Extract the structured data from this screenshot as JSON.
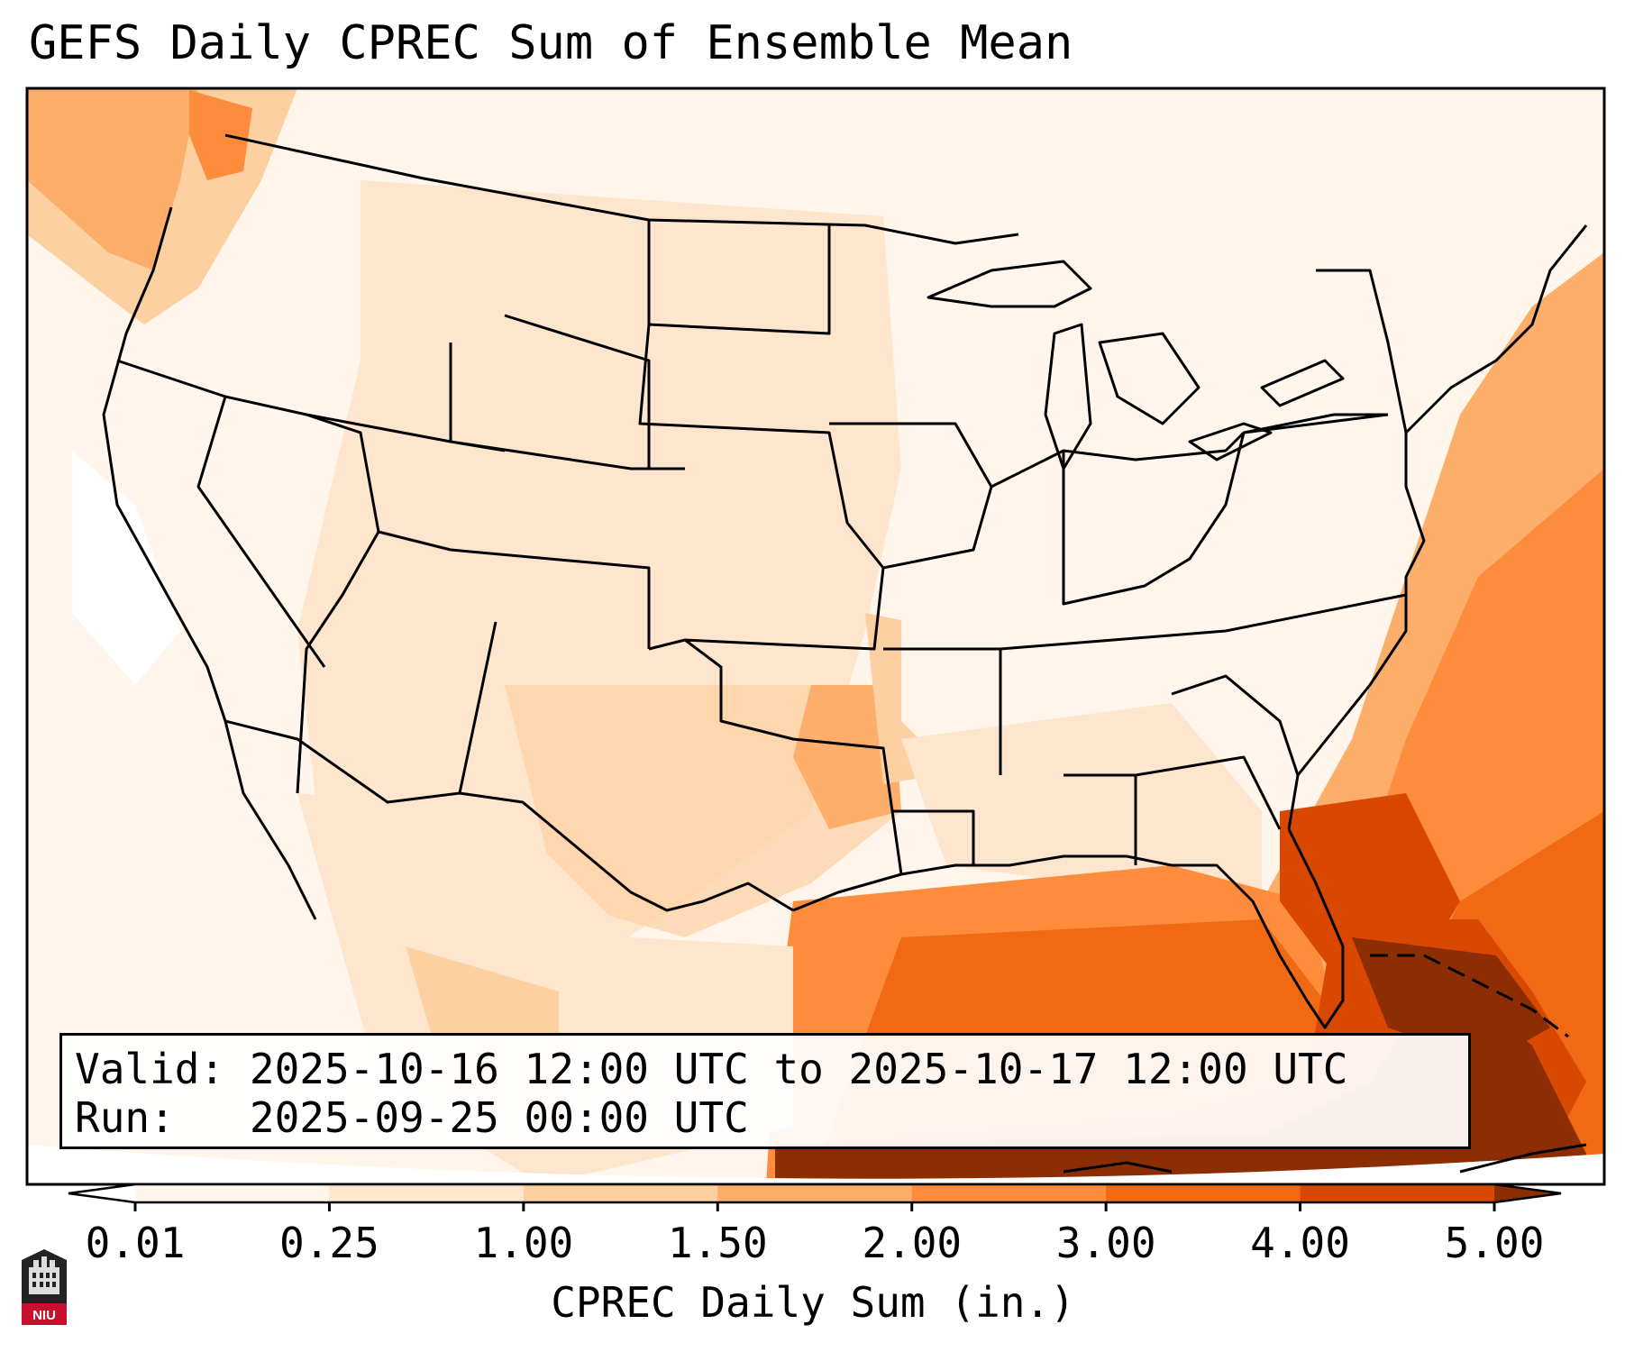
{
  "title": "GEFS Daily CPREC Sum of Ensemble Mean",
  "info": {
    "valid_label": "Valid:",
    "valid_value": "2025-10-16 12:00 UTC to 2025-10-17 12:00 UTC",
    "run_label": "Run:",
    "run_value": "2025-09-25 00:00 UTC"
  },
  "colorbar": {
    "label": "CPREC Daily Sum (in.)",
    "ticks": [
      "0.01",
      "0.25",
      "1.00",
      "1.50",
      "2.00",
      "3.00",
      "4.00",
      "5.00"
    ],
    "colors": [
      "#ffffff",
      "#fff5eb",
      "#fee6ce",
      "#fdd0a2",
      "#fdae6b",
      "#fd8d3c",
      "#f16913",
      "#d94801",
      "#8c2d04"
    ],
    "extend": "both"
  },
  "map": {
    "region": "CONUS",
    "field": "CPREC daily sum",
    "heavy_precip_regions": [
      "Gulf of Mexico",
      "Florida",
      "Western Atlantic",
      "Bahamas"
    ]
  },
  "logo": {
    "text": "NIU",
    "accent": "#c8102e"
  }
}
